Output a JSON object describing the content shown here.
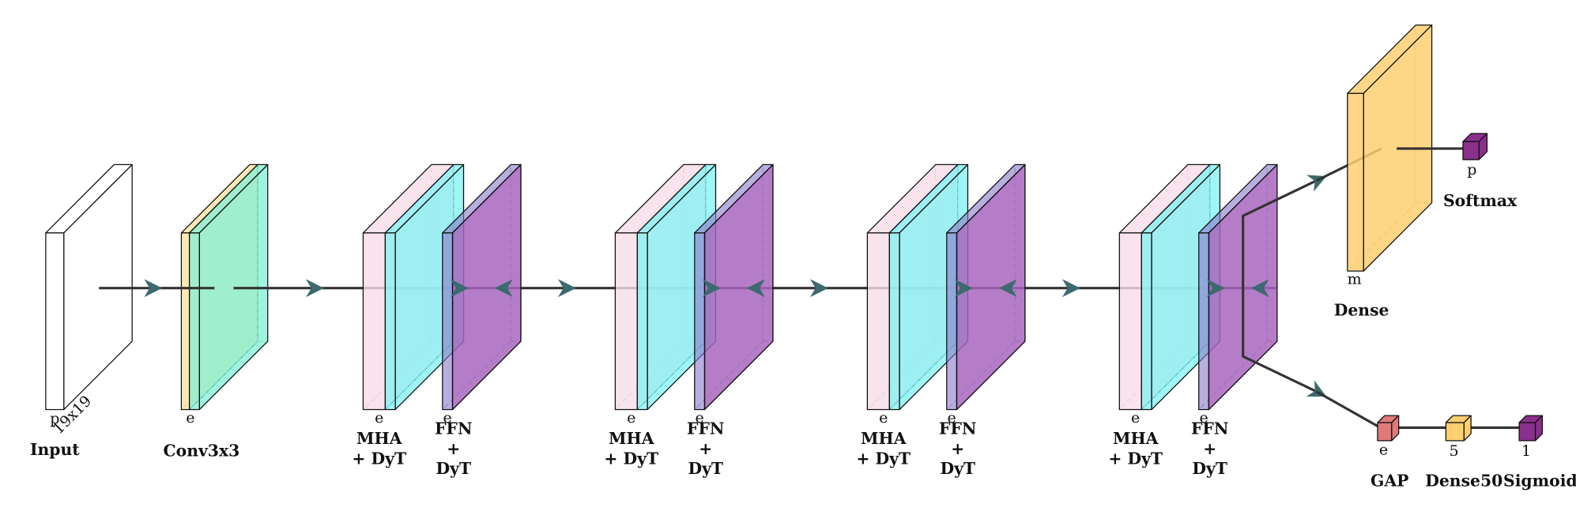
{
  "nodes": [
    {
      "label": [
        "Input"
      ],
      "dims": [
        "p",
        "19x19"
      ]
    },
    {
      "label": [
        "Conv3x3"
      ],
      "dims": [
        "e"
      ]
    },
    {
      "label": [
        "MHA",
        "+ DyT"
      ],
      "dims": [
        "e"
      ]
    },
    {
      "label": [
        "FFN",
        "+",
        "DyT"
      ],
      "dims": [
        "e"
      ]
    },
    {
      "label": [
        "MHA",
        "+ DyT"
      ],
      "dims": [
        "e"
      ]
    },
    {
      "label": [
        "FFN",
        "+",
        "DyT"
      ],
      "dims": [
        "e"
      ]
    },
    {
      "label": [
        "MHA",
        "+ DyT"
      ],
      "dims": [
        "e"
      ]
    },
    {
      "label": [
        "FFN",
        "+",
        "DyT"
      ],
      "dims": [
        "e"
      ]
    },
    {
      "label": [
        "MHA",
        "+ DyT"
      ],
      "dims": [
        "e"
      ]
    },
    {
      "label": [
        "FFN",
        "+",
        "DyT"
      ],
      "dims": [
        "e"
      ]
    },
    {
      "label": [
        "Dense"
      ],
      "dims": [
        "m"
      ]
    },
    {
      "label": [
        "Softmax"
      ],
      "dims": [
        "p"
      ]
    },
    {
      "label": [
        "GAP"
      ],
      "dims": [
        "e"
      ]
    },
    {
      "label": [
        "Dense50"
      ],
      "dims": [
        "5"
      ]
    },
    {
      "label": [
        "Sigmoid"
      ],
      "dims": [
        "1"
      ]
    }
  ]
}
